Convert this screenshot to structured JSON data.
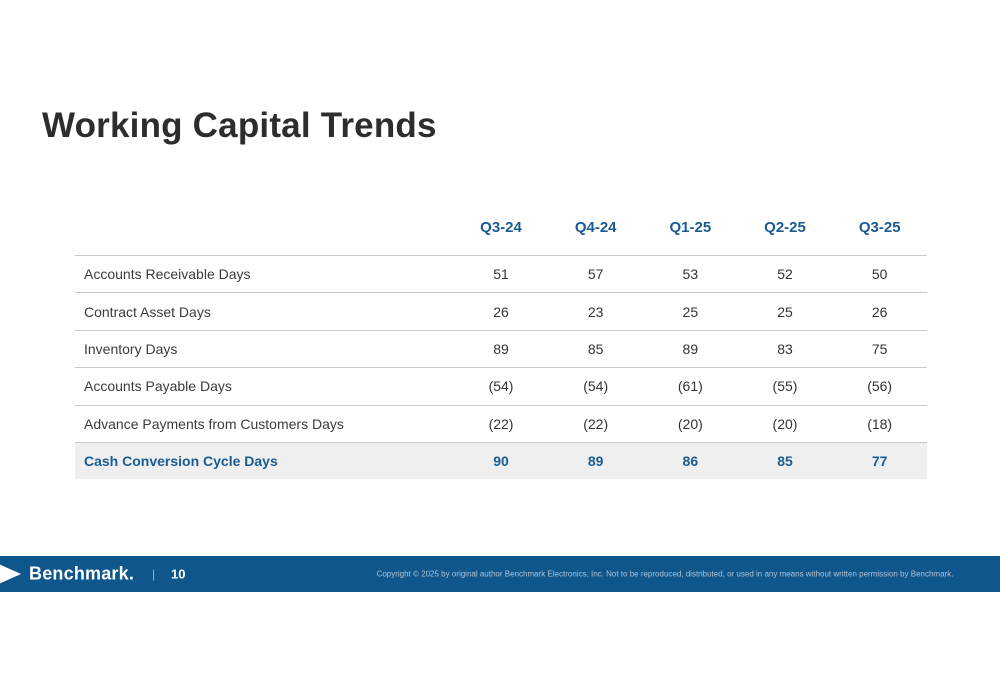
{
  "slide": {
    "title": "Working Capital Trends"
  },
  "table": {
    "quarters": [
      "Q3-24",
      "Q4-24",
      "Q1-25",
      "Q2-25",
      "Q3-25"
    ],
    "rows": [
      {
        "label": "Accounts Receivable Days",
        "values": [
          "51",
          "57",
          "53",
          "52",
          "50"
        ],
        "highlight": false
      },
      {
        "label": "Contract Asset Days",
        "values": [
          "26",
          "23",
          "25",
          "25",
          "26"
        ],
        "highlight": false
      },
      {
        "label": "Inventory Days",
        "values": [
          "89",
          "85",
          "89",
          "83",
          "75"
        ],
        "highlight": false
      },
      {
        "label": "Accounts Payable Days",
        "values": [
          "(54)",
          "(54)",
          "(61)",
          "(55)",
          "(56)"
        ],
        "highlight": false
      },
      {
        "label": "Advance Payments from Customers Days",
        "values": [
          "(22)",
          "(22)",
          "(20)",
          "(20)",
          "(18)"
        ],
        "highlight": false
      },
      {
        "label": "Cash Conversion Cycle Days",
        "values": [
          "90",
          "89",
          "86",
          "85",
          "77"
        ],
        "highlight": true
      }
    ]
  },
  "footer": {
    "logo_text": "Benchmark.",
    "separator": "|",
    "page_number": "10",
    "copyright": "Copyright © 2025 by original author Benchmark Electronics, Inc. Not to be reproduced, distributed, or used in any means without written permission by Benchmark."
  },
  "icons": {
    "footer_arrow": "right-arrow-icon"
  },
  "colors": {
    "accent_blue": "#1a5c92",
    "footer_bar_blue": "#0f568c",
    "highlight_row_bg": "#efefef",
    "row_separator_gray": "#c9c9c9",
    "title_color": "#2d2d2d",
    "copyright_text": "#aec3d6"
  },
  "chart_data": {
    "type": "table",
    "title": "Working Capital Trends",
    "columns": [
      "Q3-24",
      "Q4-24",
      "Q1-25",
      "Q2-25",
      "Q3-25"
    ],
    "rows": [
      {
        "label": "Accounts Receivable Days",
        "values": [
          51,
          57,
          53,
          52,
          50
        ]
      },
      {
        "label": "Contract Asset Days",
        "values": [
          26,
          23,
          25,
          25,
          26
        ]
      },
      {
        "label": "Inventory Days",
        "values": [
          89,
          85,
          89,
          83,
          75
        ]
      },
      {
        "label": "Accounts Payable Days",
        "values": [
          -54,
          -54,
          -61,
          -55,
          -56
        ]
      },
      {
        "label": "Advance Payments from Customers Days",
        "values": [
          -22,
          -22,
          -20,
          -20,
          -18
        ]
      },
      {
        "label": "Cash Conversion Cycle Days",
        "values": [
          90,
          89,
          86,
          85,
          77
        ]
      }
    ]
  }
}
